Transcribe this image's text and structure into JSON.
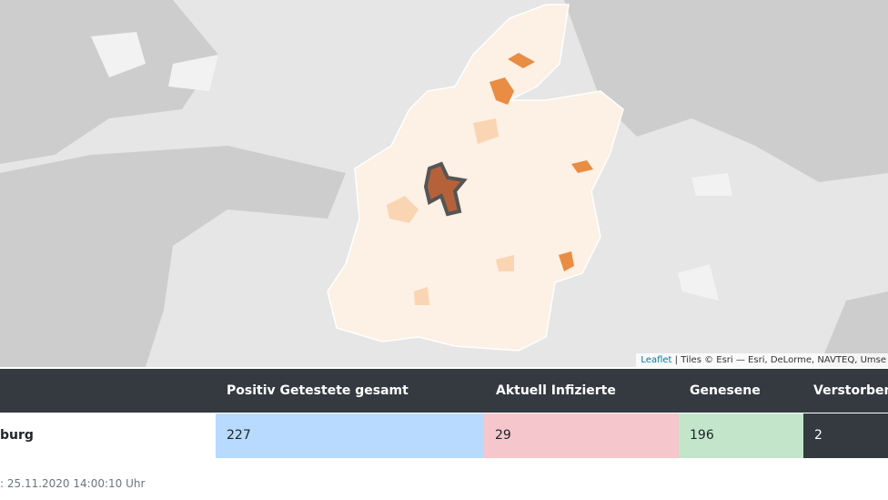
{
  "map": {
    "attribution": {
      "link": "Leaflet",
      "text": "| Tiles © Esri — Esri, DeLorme, NAVTEQ, Umse"
    }
  },
  "table": {
    "headers": [
      "Positiv Getestete gesamt",
      "Aktuell Infizierte",
      "Genesene",
      "Verstorben"
    ],
    "rows": [
      [
        "burg",
        "227",
        "29",
        "196",
        "2"
      ]
    ]
  },
  "footer": ": 25.11.2020 14:00:10 Uhr"
}
